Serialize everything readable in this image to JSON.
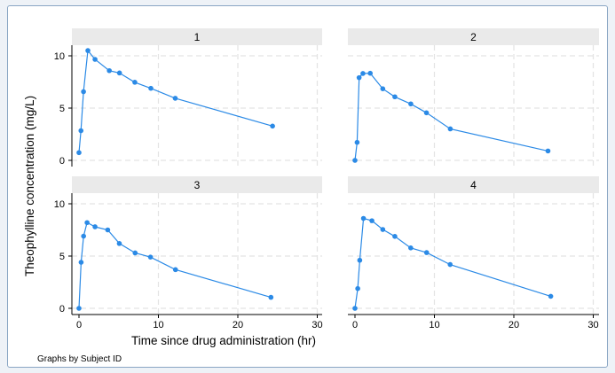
{
  "chart_data": {
    "type": "line",
    "ylabel": "Theophylline concentration (mg/L)",
    "xlabel": "Time since drug administration (hr)",
    "note": "Graphs by Subject ID",
    "xlim": [
      0,
      30
    ],
    "ylim": [
      0,
      10
    ],
    "xticks": [
      "0",
      "10",
      "20",
      "30"
    ],
    "yticks": [
      "0",
      "5",
      "10"
    ],
    "grid": true,
    "colors": {
      "line": "#2b8ae6",
      "panel_header": "#eaeaea",
      "grid": "#e3e3e3",
      "frame_border": "#8aa6c4"
    },
    "panels": [
      {
        "title": "1",
        "x": [
          0,
          0.25,
          0.57,
          1.12,
          2.02,
          3.82,
          5.1,
          7.03,
          9.05,
          12.12,
          24.37
        ],
        "y": [
          0.74,
          2.84,
          6.57,
          10.5,
          9.66,
          8.58,
          8.36,
          7.47,
          6.89,
          5.94,
          3.28
        ]
      },
      {
        "title": "2",
        "x": [
          0,
          0.27,
          0.52,
          1.0,
          1.92,
          3.5,
          5.02,
          7.03,
          9.0,
          12.0,
          24.3
        ],
        "y": [
          0.0,
          1.72,
          7.91,
          8.31,
          8.33,
          6.85,
          6.08,
          5.4,
          4.55,
          3.01,
          0.9
        ]
      },
      {
        "title": "3",
        "x": [
          0,
          0.27,
          0.58,
          1.02,
          2.02,
          3.62,
          5.08,
          7.07,
          9.0,
          12.15,
          24.17
        ],
        "y": [
          0.0,
          4.4,
          6.9,
          8.2,
          7.8,
          7.5,
          6.2,
          5.3,
          4.9,
          3.7,
          1.05
        ]
      },
      {
        "title": "4",
        "x": [
          0,
          0.35,
          0.6,
          1.07,
          2.13,
          3.5,
          5.02,
          7.02,
          9.02,
          11.98,
          24.65
        ],
        "y": [
          0.0,
          1.89,
          4.6,
          8.6,
          8.38,
          7.54,
          6.88,
          5.78,
          5.33,
          4.19,
          1.15
        ]
      }
    ]
  }
}
